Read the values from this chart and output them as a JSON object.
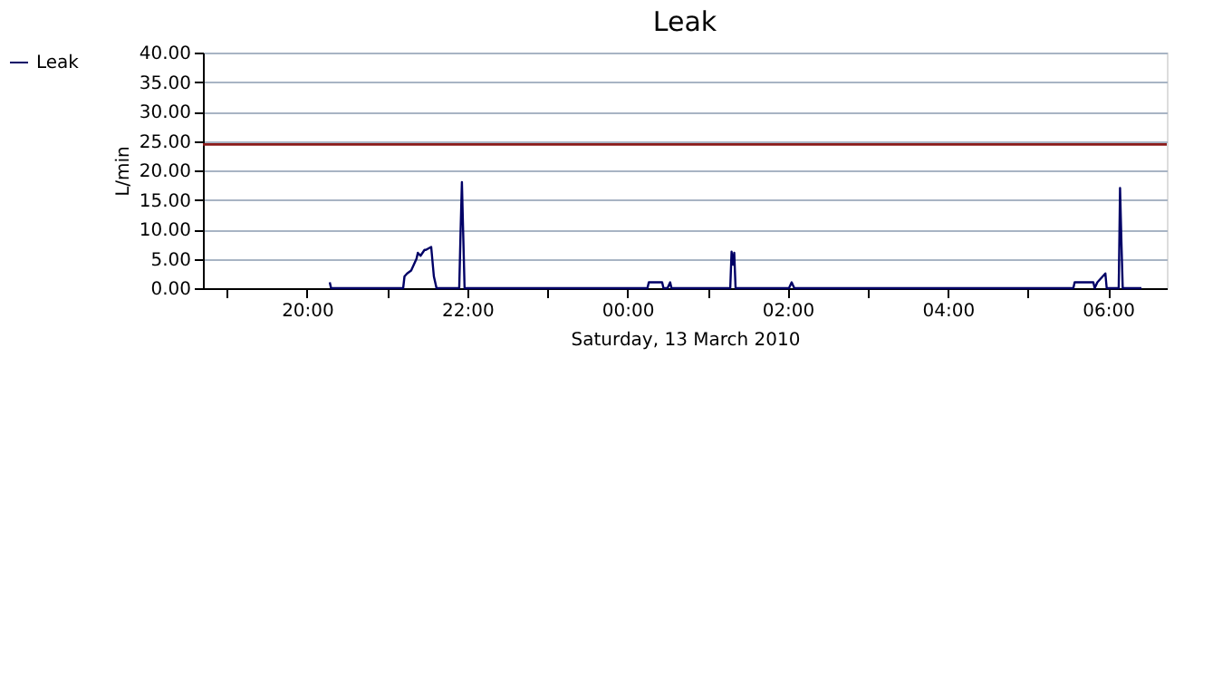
{
  "chart_data": {
    "type": "line",
    "title": "Leak",
    "xlabel": "Saturday, 13 March 2010",
    "ylabel": "L/min",
    "series": [
      {
        "name": "Leak",
        "color": "#000066",
        "x": [
          "2010-03-13T20:17",
          "2010-03-13T20:18",
          "2010-03-13T21:12",
          "2010-03-13T21:13",
          "2010-03-13T21:15",
          "2010-03-13T21:18",
          "2010-03-13T21:22",
          "2010-03-13T21:23",
          "2010-03-13T21:25",
          "2010-03-13T21:28",
          "2010-03-13T21:29",
          "2010-03-13T21:33",
          "2010-03-13T21:35",
          "2010-03-13T21:37",
          "2010-03-13T21:54",
          "2010-03-13T21:55",
          "2010-03-13T21:56",
          "2010-03-13T21:57",
          "2010-03-13T21:58",
          "2010-03-14T00:15",
          "2010-03-14T00:16",
          "2010-03-14T00:26",
          "2010-03-14T00:27",
          "2010-03-14T00:30",
          "2010-03-14T00:32",
          "2010-03-14T00:33",
          "2010-03-14T00:34",
          "2010-03-14T01:17",
          "2010-03-14T01:18",
          "2010-03-14T01:19",
          "2010-03-14T01:20",
          "2010-03-14T01:21",
          "2010-03-14T02:01",
          "2010-03-14T02:03",
          "2010-03-14T02:05",
          "2010-03-14T05:34",
          "2010-03-14T05:35",
          "2010-03-14T05:49",
          "2010-03-14T05:50",
          "2010-03-14T05:52",
          "2010-03-14T05:58",
          "2010-03-14T05:59",
          "2010-03-14T06:08",
          "2010-03-14T06:09",
          "2010-03-14T06:10",
          "2010-03-14T06:11",
          "2010-03-14T06:25"
        ],
        "values": [
          1,
          0,
          0,
          2,
          2.5,
          3,
          5,
          6,
          5.5,
          6.5,
          6.5,
          7,
          2,
          0,
          0,
          9.5,
          18,
          9,
          0,
          0,
          1,
          1,
          0,
          0,
          1,
          0,
          0,
          0,
          6.2,
          4,
          6,
          0,
          0,
          1,
          0,
          0,
          1,
          1,
          0,
          1,
          2.5,
          0,
          0,
          17,
          8,
          0,
          0
        ]
      }
    ],
    "xlim": [
      "2010-03-13T18:42",
      "2010-03-14T06:44"
    ],
    "xticks": [
      {
        "value": "2010-03-13T19:00",
        "label": null
      },
      {
        "value": "2010-03-13T20:00",
        "label": "20:00"
      },
      {
        "value": "2010-03-13T21:00",
        "label": null
      },
      {
        "value": "2010-03-13T22:00",
        "label": "22:00"
      },
      {
        "value": "2010-03-13T23:00",
        "label": null
      },
      {
        "value": "2010-03-14T00:00",
        "label": "00:00"
      },
      {
        "value": "2010-03-14T01:00",
        "label": null
      },
      {
        "value": "2010-03-14T02:00",
        "label": "02:00"
      },
      {
        "value": "2010-03-14T03:00",
        "label": null
      },
      {
        "value": "2010-03-14T04:00",
        "label": "04:00"
      },
      {
        "value": "2010-03-14T05:00",
        "label": null
      },
      {
        "value": "2010-03-14T06:00",
        "label": "06:00"
      }
    ],
    "ylim": [
      0,
      40
    ],
    "yticks": [
      {
        "value": 0,
        "label": "0.00"
      },
      {
        "value": 5,
        "label": "5.00"
      },
      {
        "value": 10,
        "label": "10.00"
      },
      {
        "value": 15,
        "label": "15.00"
      },
      {
        "value": 20,
        "label": "20.00"
      },
      {
        "value": 25,
        "label": "25.00"
      },
      {
        "value": 30,
        "label": "30.00"
      },
      {
        "value": 35,
        "label": "35.00"
      },
      {
        "value": 40,
        "label": "40.00"
      }
    ],
    "ref_lines": [
      {
        "axis": "y",
        "value": 24.4,
        "color": "#8b1a1a"
      }
    ],
    "grid": "y",
    "legend": "left",
    "marker": "none",
    "line_style": "solid"
  }
}
